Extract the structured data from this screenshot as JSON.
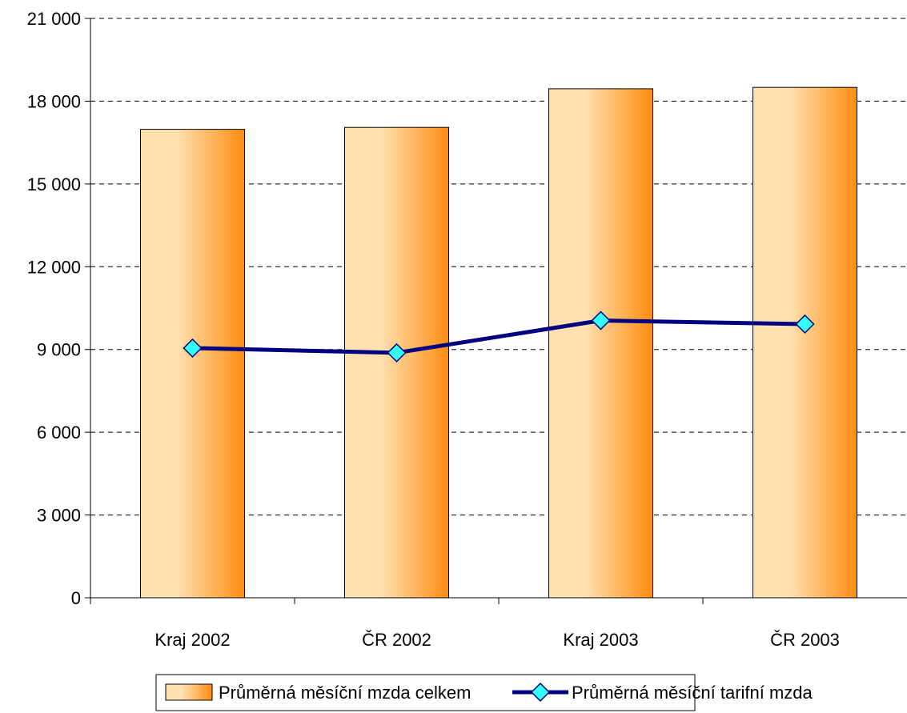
{
  "chart_data": {
    "type": "bar",
    "categories": [
      "Kraj 2002",
      "ČR 2002",
      "Kraj 2003",
      "ČR 2003"
    ],
    "series": [
      {
        "name": "Průměrná měsíční mzda celkem",
        "type": "bar",
        "values": [
          16980,
          17050,
          18450,
          18500
        ]
      },
      {
        "name": "Průměrná měsíční tarifní mzda",
        "type": "line",
        "values": [
          9050,
          8880,
          10050,
          9920
        ]
      }
    ],
    "y_ticks": [
      "0",
      "3 000",
      "6 000",
      "9 000",
      "12 000",
      "15 000",
      "18 000",
      "21 000"
    ],
    "ylim": [
      0,
      21000
    ],
    "title": "",
    "xlabel": "",
    "ylabel": "",
    "grid": true,
    "legend_position": "bottom",
    "colors": {
      "bar_light": "#ffe0b0",
      "bar_dark": "#ff8c10",
      "line": "#000080",
      "marker": "#33ffff"
    }
  }
}
